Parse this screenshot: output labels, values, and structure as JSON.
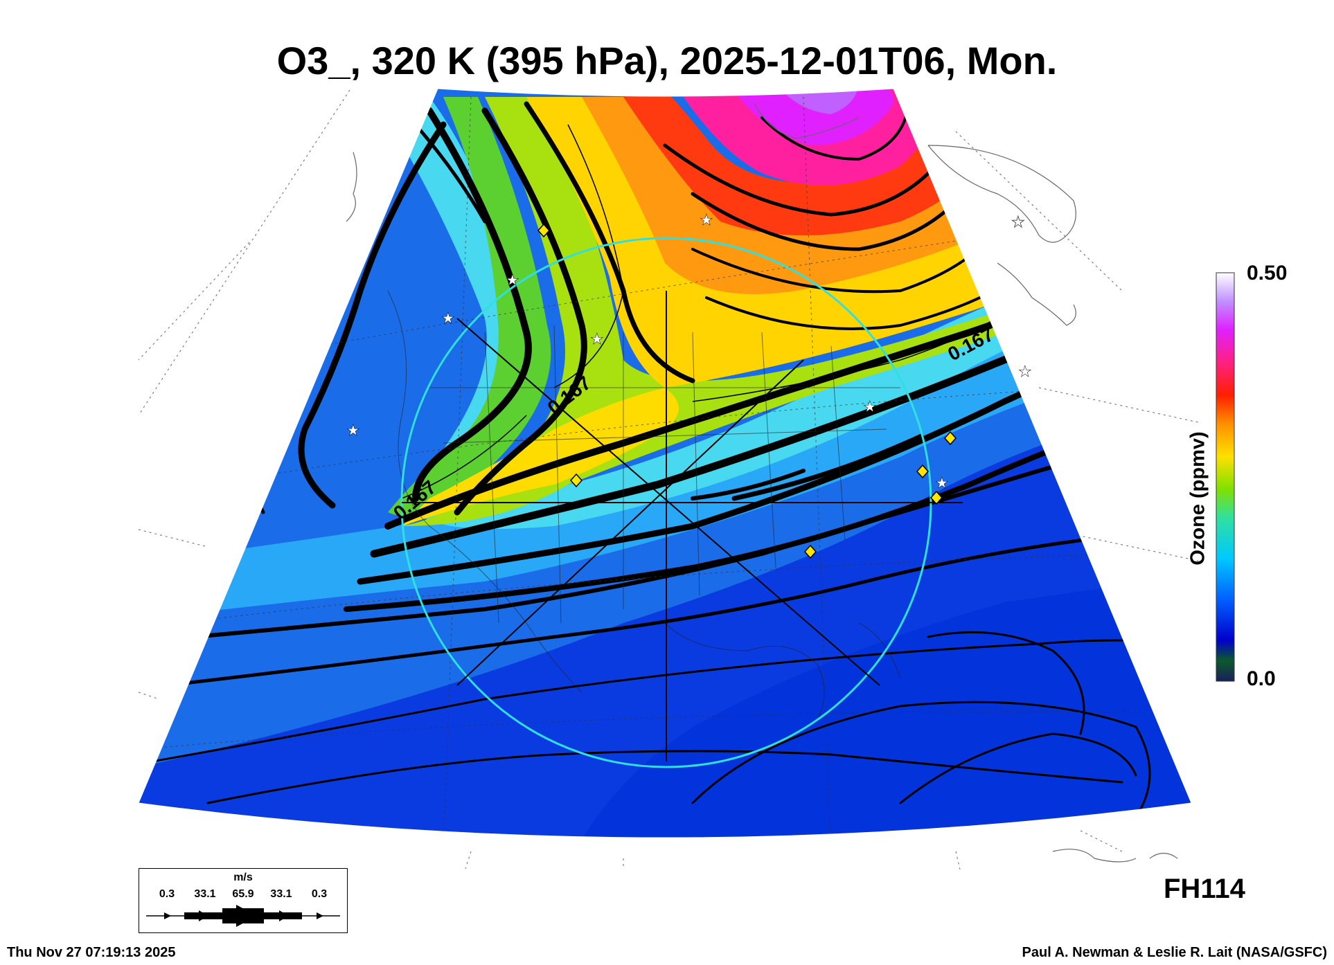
{
  "title": "O3_, 320 K (395 hPa), 2025-12-01T06, Mon.",
  "colorbar": {
    "label": "Ozone (ppmv)",
    "max_label": "0.50",
    "min_label": "0.0",
    "range": [
      0.0,
      0.5
    ],
    "colors": [
      "#1a1f5c",
      "#0a5a2a",
      "#0000cc",
      "#0040ff",
      "#0090ff",
      "#00c8ff",
      "#20e0c0",
      "#40e060",
      "#90e000",
      "#ffe000",
      "#ffa000",
      "#ff5000",
      "#ff0000",
      "#ff2080",
      "#ff00ff",
      "#c040ff",
      "#f0d0f0",
      "#ffffff"
    ]
  },
  "contour_labels": [
    "0.167",
    "0.167",
    "0.167"
  ],
  "wind_legend": {
    "unit": "m/s",
    "values": [
      "0.3",
      "33.1",
      "65.9",
      "33.1",
      "0.3"
    ]
  },
  "forecast_hour": "FH114",
  "timestamp": "Thu Nov 27 07:19:13 2025",
  "credit": "Paul A. Newman & Leslie R. Lait (NASA/GSFC)",
  "markers": {
    "white_star": "white-star-icon",
    "yellow_diamond": "yellow-diamond-icon"
  }
}
